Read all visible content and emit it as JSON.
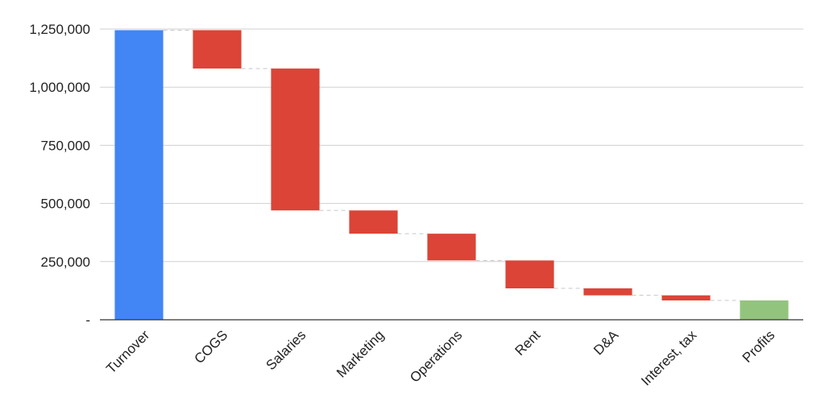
{
  "chart_data": {
    "type": "bar",
    "subtype": "waterfall",
    "title": "",
    "xlabel": "",
    "ylabel": "",
    "ylim": [
      0,
      1250000
    ],
    "yticks": [
      0,
      250000,
      500000,
      750000,
      1000000,
      1250000
    ],
    "ytick_labels": [
      "-",
      "250,000",
      "500,000",
      "750,000",
      "1,000,000",
      "1,250,000"
    ],
    "grid": true,
    "legend": "none",
    "categories": [
      "Turnover",
      "COGS",
      "Salaries",
      "Marketing",
      "Operations",
      "Rent",
      "D&A",
      "Interest, tax",
      "Profits"
    ],
    "bars": [
      {
        "category": "Turnover",
        "kind": "total",
        "start": 0,
        "end": 1245000
      },
      {
        "category": "COGS",
        "kind": "decrease",
        "start": 1245000,
        "end": 1080000
      },
      {
        "category": "Salaries",
        "kind": "decrease",
        "start": 1080000,
        "end": 470000
      },
      {
        "category": "Marketing",
        "kind": "decrease",
        "start": 470000,
        "end": 370000
      },
      {
        "category": "Operations",
        "kind": "decrease",
        "start": 370000,
        "end": 255000
      },
      {
        "category": "Rent",
        "kind": "decrease",
        "start": 255000,
        "end": 135000
      },
      {
        "category": "D&A",
        "kind": "decrease",
        "start": 135000,
        "end": 105000
      },
      {
        "category": "Interest, tax",
        "kind": "decrease",
        "start": 105000,
        "end": 83000
      },
      {
        "category": "Profits",
        "kind": "total",
        "start": 0,
        "end": 83000
      }
    ],
    "colors": {
      "total": "#4285f4",
      "decrease": "#db4437",
      "profit": "#93c47d"
    }
  }
}
